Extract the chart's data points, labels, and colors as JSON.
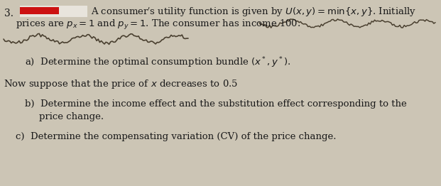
{
  "background_color": "#ccc5b5",
  "red_rect_color": "#cc1111",
  "white_rect_color": "#e8e4dc",
  "line1_prefix": "A consumer’s utility function is given by $U(x, y) = \\min\\{x, y\\}$. Initially",
  "line2": "prices are $p_x = 1$ and $p_y = 1$. The consumer has income 100.",
  "part_a": "a)  Determine the optimal consumption bundle $(x^*, y^*)$.",
  "line_now": "Now suppose that the price of $x$ decreases to 0.5",
  "part_b1": "b)  Determine the income effect and the substitution effect corresponding to the",
  "part_b2": "price change.",
  "part_c": "c)  Determine the compensating variation (CV) of the price change.",
  "font_size_main": 9.5,
  "font_size_number": 10,
  "text_color": "#1a1a1a",
  "scribble_color": "#4a4030"
}
